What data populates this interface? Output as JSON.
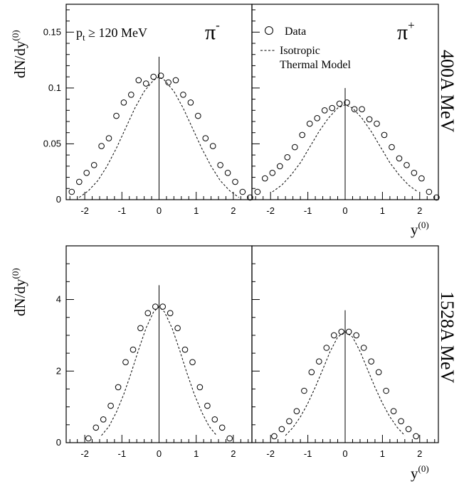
{
  "chart_data": [
    {
      "type": "scatter",
      "panel": "top-left",
      "ylabel": "dN/dy",
      "ylabel_superscript": "(0)",
      "xlim": [
        -2.5,
        2.5
      ],
      "ylim": [
        0,
        0.175
      ],
      "x_ticks": [
        "-2",
        "-1",
        "0",
        "1",
        "2"
      ],
      "y_ticks": [
        "0",
        "0.05",
        "0.1",
        "0.15"
      ],
      "cut_label_p": "p",
      "cut_label_sub": "t",
      "cut_label_rest": " ≥ 120 MeV",
      "particle": "π",
      "particle_charge": "-",
      "series": [
        {
          "name": "Data",
          "kind": "markers",
          "x": [
            -2.35,
            -2.15,
            -1.95,
            -1.75,
            -1.55,
            -1.35,
            -1.15,
            -0.95,
            -0.75,
            -0.55,
            -0.35,
            -0.15,
            0.05,
            0.25,
            0.45,
            0.65,
            0.85,
            1.05,
            1.25,
            1.45,
            1.65,
            1.85,
            2.05,
            2.25,
            2.45
          ],
          "y": [
            0.007,
            0.016,
            0.024,
            0.031,
            0.048,
            0.055,
            0.075,
            0.087,
            0.094,
            0.107,
            0.104,
            0.11,
            0.111,
            0.105,
            0.107,
            0.094,
            0.087,
            0.075,
            0.055,
            0.048,
            0.031,
            0.024,
            0.016,
            0.007,
            0.002
          ]
        },
        {
          "name": "Isotropic Thermal Model",
          "kind": "dashed",
          "x": [
            -2.15,
            -1.9,
            -1.65,
            -1.4,
            -1.15,
            -0.9,
            -0.65,
            -0.4,
            -0.15,
            0,
            0.15,
            0.4,
            0.65,
            0.9,
            1.15,
            1.4,
            1.65,
            1.9,
            2.15
          ],
          "y": [
            0.002,
            0.008,
            0.017,
            0.03,
            0.046,
            0.064,
            0.082,
            0.097,
            0.107,
            0.11,
            0.107,
            0.097,
            0.082,
            0.064,
            0.046,
            0.03,
            0.017,
            0.008,
            0.002
          ]
        }
      ]
    },
    {
      "type": "scatter",
      "panel": "top-right",
      "xlim": [
        -2.5,
        2.5
      ],
      "ylim": [
        0,
        0.175
      ],
      "x_ticks": [
        "-2",
        "-1",
        "0",
        "1",
        "2"
      ],
      "xlabel": "y",
      "xlabel_superscript": "(0)",
      "particle": "π",
      "particle_charge": "+",
      "side_label": "400A MeV",
      "legend": {
        "data_label": "Data",
        "model_line1": "Isotropic",
        "model_line2": "Thermal Model"
      },
      "series": [
        {
          "name": "Data",
          "kind": "markers",
          "x": [
            -2.35,
            -2.15,
            -1.95,
            -1.75,
            -1.55,
            -1.35,
            -1.15,
            -0.95,
            -0.75,
            -0.55,
            -0.35,
            -0.15,
            0.05,
            0.25,
            0.45,
            0.65,
            0.85,
            1.05,
            1.25,
            1.45,
            1.65,
            1.85,
            2.05,
            2.25,
            2.45
          ],
          "y": [
            0.007,
            0.019,
            0.024,
            0.03,
            0.038,
            0.047,
            0.058,
            0.068,
            0.073,
            0.08,
            0.082,
            0.086,
            0.087,
            0.081,
            0.081,
            0.072,
            0.068,
            0.058,
            0.047,
            0.037,
            0.031,
            0.024,
            0.019,
            0.007,
            0.002
          ]
        },
        {
          "name": "Isotropic Thermal Model",
          "kind": "dashed",
          "x": [
            -1.95,
            -1.7,
            -1.45,
            -1.2,
            -0.95,
            -0.7,
            -0.45,
            -0.2,
            0,
            0.2,
            0.45,
            0.7,
            0.95,
            1.2,
            1.45,
            1.7,
            1.95
          ],
          "y": [
            0.007,
            0.013,
            0.022,
            0.033,
            0.047,
            0.061,
            0.073,
            0.082,
            0.085,
            0.082,
            0.073,
            0.061,
            0.047,
            0.033,
            0.022,
            0.013,
            0.007
          ]
        }
      ]
    },
    {
      "type": "scatter",
      "panel": "bottom-left",
      "ylabel": "dN/dy",
      "ylabel_superscript": "(0)",
      "xlim": [
        -2.5,
        2.5
      ],
      "ylim": [
        0,
        5.5
      ],
      "x_ticks": [
        "-2",
        "-1",
        "0",
        "1",
        "2"
      ],
      "y_ticks": [
        "0",
        "2",
        "4"
      ],
      "series": [
        {
          "name": "Data",
          "kind": "markers",
          "x": [
            -1.9,
            -1.7,
            -1.5,
            -1.3,
            -1.1,
            -0.9,
            -0.7,
            -0.5,
            -0.3,
            -0.1,
            0.1,
            0.3,
            0.5,
            0.7,
            0.9,
            1.1,
            1.3,
            1.5,
            1.7,
            1.9
          ],
          "y": [
            0.12,
            0.42,
            0.65,
            1.03,
            1.55,
            2.25,
            2.6,
            3.2,
            3.62,
            3.8,
            3.8,
            3.62,
            3.2,
            2.6,
            2.25,
            1.55,
            1.03,
            0.65,
            0.42,
            0.12
          ]
        },
        {
          "name": "Isotropic Thermal Model",
          "kind": "dashed",
          "x": [
            -1.55,
            -1.35,
            -1.15,
            -0.95,
            -0.75,
            -0.55,
            -0.35,
            -0.15,
            0,
            0.15,
            0.35,
            0.55,
            0.75,
            0.95,
            1.15,
            1.35,
            1.55
          ],
          "y": [
            0.2,
            0.45,
            0.85,
            1.35,
            1.95,
            2.6,
            3.2,
            3.65,
            3.8,
            3.65,
            3.2,
            2.6,
            1.95,
            1.35,
            0.85,
            0.45,
            0.2
          ]
        }
      ]
    },
    {
      "type": "scatter",
      "panel": "bottom-right",
      "xlim": [
        -2.5,
        2.5
      ],
      "ylim": [
        0,
        5.5
      ],
      "x_ticks": [
        "-2",
        "-1",
        "0",
        "1",
        "2"
      ],
      "xlabel": "y",
      "xlabel_superscript": "(0)",
      "side_label": "1528A MeV",
      "series": [
        {
          "name": "Data",
          "kind": "markers",
          "x": [
            -1.9,
            -1.7,
            -1.5,
            -1.3,
            -1.1,
            -0.9,
            -0.7,
            -0.5,
            -0.3,
            -0.1,
            0.1,
            0.3,
            0.5,
            0.7,
            0.9,
            1.1,
            1.3,
            1.5,
            1.7,
            1.9
          ],
          "y": [
            0.18,
            0.38,
            0.6,
            0.88,
            1.45,
            1.97,
            2.27,
            2.65,
            3.0,
            3.1,
            3.1,
            3.0,
            2.65,
            2.27,
            1.97,
            1.45,
            0.88,
            0.6,
            0.38,
            0.18
          ]
        },
        {
          "name": "Isotropic Thermal Model",
          "kind": "dashed",
          "x": [
            -1.6,
            -1.4,
            -1.2,
            -1.0,
            -0.8,
            -0.6,
            -0.4,
            -0.2,
            0,
            0.2,
            0.4,
            0.6,
            0.8,
            1.0,
            1.2,
            1.4,
            1.6
          ],
          "y": [
            0.2,
            0.42,
            0.72,
            1.1,
            1.55,
            2.05,
            2.55,
            2.95,
            3.1,
            2.95,
            2.55,
            2.05,
            1.55,
            1.1,
            0.72,
            0.42,
            0.2
          ]
        }
      ]
    }
  ]
}
